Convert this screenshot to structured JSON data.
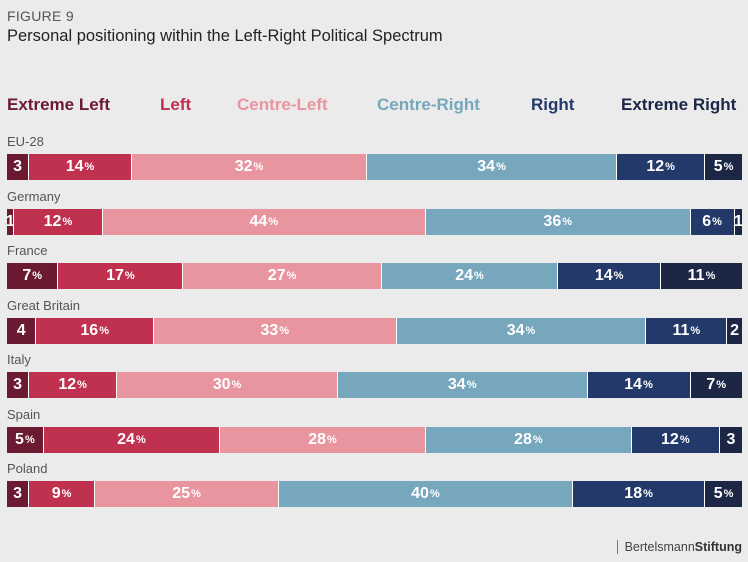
{
  "figure_label": "FIGURE 9",
  "title": "Personal positioning within the Left-Right Political Spectrum",
  "footer": {
    "brand_regular": "Bertelsmann",
    "brand_bold": "Stiftung"
  },
  "colors": {
    "extreme_left": "#6b1a31",
    "left": "#c0304f",
    "centre_left": "#e8959f",
    "centre_right": "#76a7bc",
    "right": "#23396a",
    "extreme_right": "#1c2645"
  },
  "chart_data": {
    "type": "bar",
    "orientation": "horizontal",
    "stacked": true,
    "title": "Personal positioning within the Left-Right Political Spectrum",
    "categories": [
      "EU-28",
      "Germany",
      "France",
      "Great Britain",
      "Italy",
      "Spain",
      "Poland"
    ],
    "series": [
      {
        "name": "Extreme Left",
        "key": "extreme_left",
        "values": [
          3,
          1,
          7,
          4,
          3,
          5,
          3
        ]
      },
      {
        "name": "Left",
        "key": "left",
        "values": [
          14,
          12,
          17,
          16,
          12,
          24,
          9
        ]
      },
      {
        "name": "Centre-Left",
        "key": "centre_left",
        "values": [
          32,
          44,
          27,
          33,
          30,
          28,
          25
        ]
      },
      {
        "name": "Centre-Right",
        "key": "centre_right",
        "values": [
          34,
          36,
          24,
          34,
          34,
          28,
          40
        ]
      },
      {
        "name": "Right",
        "key": "right",
        "values": [
          12,
          6,
          14,
          11,
          14,
          12,
          18
        ]
      },
      {
        "name": "Extreme Right",
        "key": "extreme_right",
        "values": [
          5,
          1,
          11,
          2,
          7,
          3,
          5
        ]
      }
    ],
    "labels": [
      [
        {
          "v": "3",
          "p": ""
        },
        {
          "v": "14",
          "p": "%"
        },
        {
          "v": "32",
          "p": "%"
        },
        {
          "v": "34",
          "p": "%"
        },
        {
          "v": "12",
          "p": "%"
        },
        {
          "v": "5",
          "p": "%"
        }
      ],
      [
        {
          "v": "1",
          "p": ""
        },
        {
          "v": "12",
          "p": "%"
        },
        {
          "v": "44",
          "p": "%"
        },
        {
          "v": "36",
          "p": "%"
        },
        {
          "v": "6",
          "p": "%"
        },
        {
          "v": "1",
          "p": ""
        }
      ],
      [
        {
          "v": "7",
          "p": "%"
        },
        {
          "v": "17",
          "p": "%"
        },
        {
          "v": "27",
          "p": "%"
        },
        {
          "v": "24",
          "p": "%"
        },
        {
          "v": "14",
          "p": "%"
        },
        {
          "v": "11",
          "p": "%"
        }
      ],
      [
        {
          "v": "4",
          "p": ""
        },
        {
          "v": "16",
          "p": "%"
        },
        {
          "v": "33",
          "p": "%"
        },
        {
          "v": "34",
          "p": "%"
        },
        {
          "v": "11",
          "p": "%"
        },
        {
          "v": "2",
          "p": ""
        }
      ],
      [
        {
          "v": "3",
          "p": ""
        },
        {
          "v": "12",
          "p": "%"
        },
        {
          "v": "30",
          "p": "%"
        },
        {
          "v": "34",
          "p": "%"
        },
        {
          "v": "14",
          "p": "%"
        },
        {
          "v": "7",
          "p": "%"
        }
      ],
      [
        {
          "v": "5",
          "p": "%"
        },
        {
          "v": "24",
          "p": "%"
        },
        {
          "v": "28",
          "p": "%"
        },
        {
          "v": "28",
          "p": "%"
        },
        {
          "v": "12",
          "p": "%"
        },
        {
          "v": "3",
          "p": ""
        }
      ],
      [
        {
          "v": "3",
          "p": ""
        },
        {
          "v": "9",
          "p": "%"
        },
        {
          "v": "25",
          "p": "%"
        },
        {
          "v": "40",
          "p": "%"
        },
        {
          "v": "18",
          "p": "%"
        },
        {
          "v": "5",
          "p": "%"
        }
      ]
    ],
    "legend_position": "top",
    "xlim": [
      0,
      100
    ]
  }
}
